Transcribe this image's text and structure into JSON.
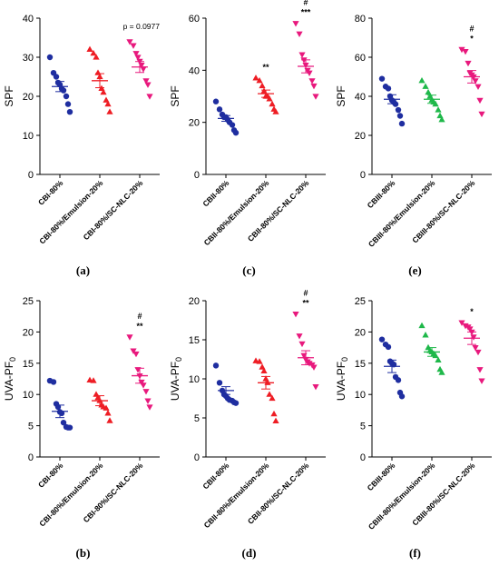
{
  "colors": {
    "blue": "#1f2ea0",
    "red": "#ee1d24",
    "green": "#1fb84a",
    "pink": "#e8197d"
  },
  "panels": [
    {
      "id": "a",
      "label": "(a)",
      "ylabel": "SPF",
      "ylim": [
        0,
        40
      ],
      "yticks": [
        0,
        10,
        20,
        30,
        40
      ],
      "categories": [
        "CBI-80%",
        "CBI-80%/Emulsion-20%",
        "CBI-80%/SC-NLC-20%"
      ],
      "markers": [
        "circle",
        "triangle-up",
        "triangle-down"
      ],
      "series_colors": [
        "blue",
        "red",
        "pink"
      ],
      "values": [
        [
          30,
          26,
          25,
          23.5,
          23,
          22,
          21.5,
          20,
          18,
          16
        ],
        [
          32,
          31,
          30,
          26,
          25,
          22,
          21,
          19,
          18,
          16
        ],
        [
          34,
          33,
          31,
          30,
          29,
          28,
          27,
          24,
          23,
          20
        ]
      ],
      "means": [
        22.5,
        24,
        27.5
      ],
      "sems": [
        1.3,
        1.8,
        1.4
      ],
      "annotations": [
        [],
        [],
        []
      ],
      "note": "p = 0.0977"
    },
    {
      "id": "c",
      "label": "(c)",
      "ylabel": "SPF",
      "ylim": [
        0,
        60
      ],
      "yticks": [
        0,
        20,
        40,
        60
      ],
      "categories": [
        "CBII-80%",
        "CBII-80%/Emulsion-20%",
        "CBII-80%/SC-NLC-20%"
      ],
      "markers": [
        "circle",
        "triangle-up",
        "triangle-down"
      ],
      "series_colors": [
        "blue",
        "red",
        "pink"
      ],
      "values": [
        [
          28,
          25,
          23,
          22,
          22,
          21,
          20,
          19,
          17,
          16
        ],
        [
          37,
          36,
          34,
          32,
          30,
          30,
          29,
          27,
          25,
          24
        ],
        [
          58,
          54,
          46,
          44,
          42,
          40,
          39,
          36,
          34,
          30
        ]
      ],
      "means": [
        21.5,
        31,
        41.5
      ],
      "sems": [
        1.1,
        1.4,
        2.5
      ],
      "annotations": [
        [],
        [
          "**"
        ],
        [
          "#",
          "***"
        ]
      ],
      "note": ""
    },
    {
      "id": "e",
      "label": "(e)",
      "ylabel": "SPF",
      "ylim": [
        0,
        80
      ],
      "yticks": [
        0,
        20,
        40,
        60,
        80
      ],
      "categories": [
        "CBIII-80%",
        "CBIII-80%/Emulsion-20%",
        "CBIII-80%/SC-NLC-20%"
      ],
      "markers": [
        "circle",
        "triangle-up",
        "triangle-down"
      ],
      "series_colors": [
        "blue",
        "green",
        "pink"
      ],
      "values": [
        [
          49,
          45,
          44,
          40,
          38,
          37,
          36,
          33,
          30,
          26
        ],
        [
          48,
          45,
          42,
          40,
          38,
          37,
          36,
          33,
          30,
          28
        ],
        [
          64,
          63,
          57,
          52,
          51,
          50,
          48,
          45,
          38,
          31
        ]
      ],
      "means": [
        38.5,
        38.5,
        50
      ],
      "sems": [
        2.3,
        2.1,
        3.2
      ],
      "annotations": [
        [],
        [],
        [
          "#",
          "*"
        ]
      ],
      "note": ""
    },
    {
      "id": "b",
      "label": "(b)",
      "ylabel": "UVA-PF",
      "ylabel_sub": "0",
      "ylim": [
        0,
        25
      ],
      "yticks": [
        0,
        5,
        10,
        15,
        20,
        25
      ],
      "categories": [
        "CBI-80%",
        "CBI-80%/Emulsion-20%",
        "CBI-80%/SC-NLC-20%"
      ],
      "markers": [
        "circle",
        "triangle-up",
        "triangle-down"
      ],
      "series_colors": [
        "blue",
        "red",
        "pink"
      ],
      "values": [
        [
          12.2,
          12,
          8.5,
          8,
          7.2,
          7,
          5.5,
          4.8,
          4.7,
          4.7
        ],
        [
          12.3,
          12.2,
          10,
          9.5,
          9,
          8.3,
          8,
          7.8,
          7,
          5.8
        ],
        [
          19.2,
          17,
          16.5,
          14,
          13,
          12,
          11.5,
          10.5,
          9,
          8
        ]
      ],
      "means": [
        7.3,
        9,
        13
      ],
      "sems": [
        1.0,
        0.8,
        1.2
      ],
      "annotations": [
        [],
        [],
        [
          "#",
          "**"
        ]
      ],
      "note": ""
    },
    {
      "id": "d",
      "label": "(d)",
      "ylabel": "UVA-PF",
      "ylabel_sub": "0",
      "ylim": [
        0,
        20
      ],
      "yticks": [
        0,
        5,
        10,
        15,
        20
      ],
      "categories": [
        "CBII-80%",
        "CBII-80%/Emulsion-20%",
        "CBII-80%/SC-NLC-20%"
      ],
      "markers": [
        "circle",
        "triangle-up",
        "triangle-down"
      ],
      "series_colors": [
        "blue",
        "red",
        "pink"
      ],
      "values": [
        [
          11.7,
          9.5,
          8.5,
          8,
          7.8,
          7.5,
          7.3,
          7.2,
          7,
          6.9
        ],
        [
          12.3,
          12.2,
          11.5,
          11,
          10,
          9.5,
          8,
          7.5,
          5.5,
          4.6
        ],
        [
          18.3,
          15.5,
          14.5,
          13,
          12.5,
          12.2,
          12,
          11.8,
          11.5,
          9
        ]
      ],
      "means": [
        8.5,
        9.5,
        12.7
      ],
      "sems": [
        0.5,
        0.8,
        0.9
      ],
      "annotations": [
        [],
        [],
        [
          "#",
          "**"
        ]
      ],
      "note": ""
    },
    {
      "id": "f",
      "label": "(f)",
      "ylabel": "UVA-PF",
      "ylabel_sub": "0",
      "ylim": [
        0,
        25
      ],
      "yticks": [
        0,
        5,
        10,
        15,
        20,
        25
      ],
      "categories": [
        "CBIII-80%",
        "CBIII-80%/Emulsion-20%",
        "CBIII-80%/SC-NLC-20%"
      ],
      "markers": [
        "circle",
        "triangle-up",
        "triangle-down"
      ],
      "series_colors": [
        "blue",
        "green",
        "pink"
      ],
      "values": [
        [
          18.8,
          18,
          17.6,
          15.3,
          15,
          14.8,
          12.8,
          12.3,
          10.3,
          9.7
        ],
        [
          21,
          19.5,
          17.5,
          17,
          16.8,
          16.5,
          16.2,
          15.5,
          14,
          13.5
        ],
        [
          21.5,
          21,
          20.8,
          20.5,
          20,
          19.2,
          17.5,
          16.8,
          14,
          12.2
        ]
      ],
      "means": [
        14.5,
        16.8,
        19
      ],
      "sems": [
        1.0,
        0.7,
        1.0
      ],
      "annotations": [
        [],
        [],
        [
          "*"
        ]
      ],
      "note": ""
    }
  ]
}
